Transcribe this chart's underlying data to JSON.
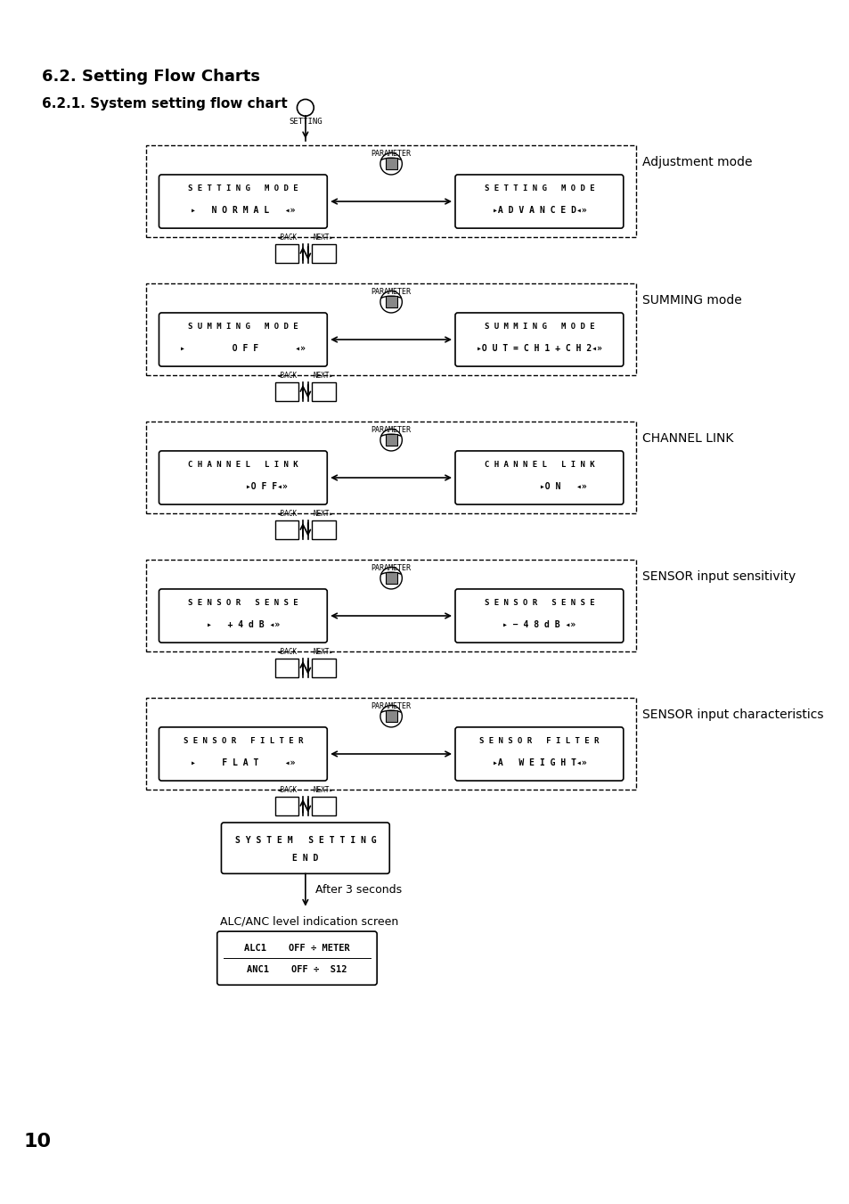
{
  "title1": "6.2. Setting Flow Charts",
  "title2": "6.2.1. System setting flow chart",
  "page_number": "10",
  "bg_color": "#ffffff",
  "sections": [
    {
      "label": "Adjustment mode",
      "box1_line1": "S E T T I N G   M O D E",
      "box1_line2": "▸   N O R M A L   ◂»",
      "box2_line1": "S E T T I N G   M O D E",
      "box2_line2": "▸A D V A N C E D◂»"
    },
    {
      "label": "SUMMING mode",
      "box1_line1": "S U M M I N G   M O D E",
      "box1_line2": "▸         O F F       ◂»",
      "box2_line1": "S U M M I N G   M O D E",
      "box2_line2": "▸O U T = C H 1 + C H 2◂»"
    },
    {
      "label": "CHANNEL LINK",
      "box1_line1": "C H A N N E L   L I N K",
      "box1_line2": "         ▸O F F◂»",
      "box2_line1": "C H A N N E L   L I N K",
      "box2_line2": "         ▸O N   ◂»"
    },
    {
      "label": "SENSOR input sensitivity",
      "box1_line1": "S E N S O R   S E N S E",
      "box1_line2": "▸   + 4 d B ◂»",
      "box2_line1": "S E N S O R   S E N S E",
      "box2_line2": "▸ − 4 8 d B ◂»"
    },
    {
      "label": "SENSOR input characteristics",
      "box1_line1": "S E N S O R   F I L T E R",
      "box1_line2": "▸     F L A T     ◂»",
      "box2_line1": "S E N S O R   F I L T E R",
      "box2_line2": "▸A   W E I G H T◂»"
    }
  ],
  "end_box_line1": "S Y S T E M   S E T T I N G",
  "end_box_line2": "E N D",
  "after_text": "After 3 seconds",
  "alc_anc_label": "ALC/ANC level indication screen",
  "alc_box_line1": "ALC1    OFF ÷ METER",
  "alc_box_line2": "ANC1    OFF ÷  S12"
}
